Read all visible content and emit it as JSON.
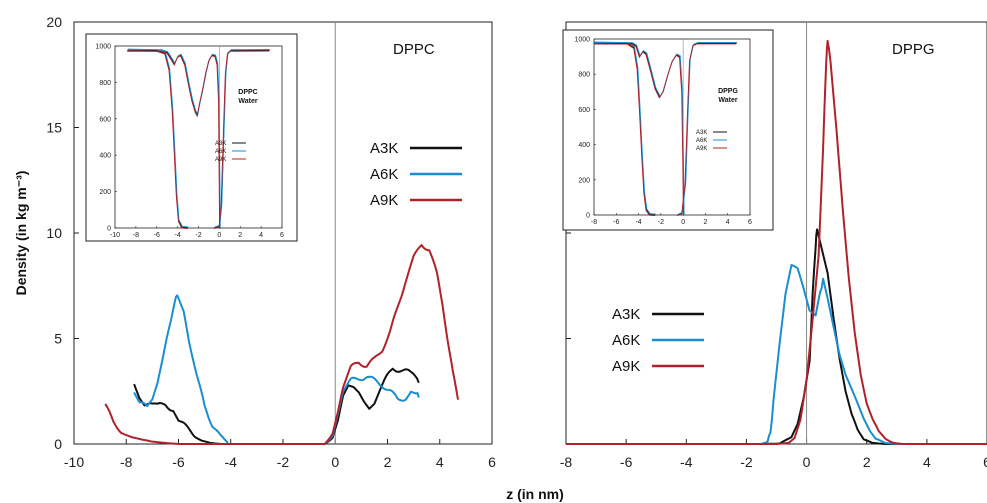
{
  "chart_data": [
    {
      "type": "line",
      "title": "DPPC",
      "xlabel": "z (in nm)",
      "ylabel": "Density (in kg m⁻³)",
      "xlim": [
        -10,
        6
      ],
      "ylim": [
        0,
        20
      ],
      "xticks": [
        -10,
        -8,
        -6,
        -4,
        -2,
        0,
        2,
        4,
        6
      ],
      "yticks": [
        0,
        5,
        10,
        15,
        20
      ],
      "legend_position": "right",
      "series": [
        {
          "name": "A3K",
          "color": "#111111",
          "segments": [
            [
              [
                -7.7,
                2.8
              ],
              [
                -7.5,
                2.2
              ],
              [
                -7.3,
                1.9
              ],
              [
                -7.0,
                1.8
              ],
              [
                -6.8,
                1.8
              ],
              [
                -6.5,
                1.9
              ],
              [
                -6.2,
                1.6
              ],
              [
                -6.0,
                1.2
              ],
              [
                -5.7,
                0.8
              ],
              [
                -5.4,
                0.4
              ],
              [
                -5.1,
                0.15
              ],
              [
                -4.8,
                0.05
              ],
              [
                -4.4,
                0.0
              ],
              [
                -2.0,
                0.0
              ],
              [
                -0.4,
                0.0
              ],
              [
                -0.1,
                0.3
              ],
              [
                0.1,
                1.2
              ],
              [
                0.3,
                2.4
              ],
              [
                0.5,
                2.9
              ],
              [
                0.7,
                2.8
              ],
              [
                0.9,
                2.5
              ],
              [
                1.1,
                2.0
              ],
              [
                1.3,
                1.6
              ],
              [
                1.5,
                1.8
              ],
              [
                1.7,
                2.4
              ],
              [
                1.9,
                3.0
              ],
              [
                2.2,
                3.6
              ],
              [
                2.5,
                3.5
              ],
              [
                2.8,
                3.4
              ],
              [
                3.0,
                3.2
              ],
              [
                3.2,
                2.9
              ]
            ]
          ]
        },
        {
          "name": "A6K",
          "color": "#1a8ed0",
          "segments": [
            [
              [
                -7.7,
                2.4
              ],
              [
                -7.5,
                2.0
              ],
              [
                -7.2,
                1.7
              ],
              [
                -7.0,
                2.0
              ],
              [
                -6.8,
                2.8
              ],
              [
                -6.6,
                4.0
              ],
              [
                -6.3,
                5.8
              ],
              [
                -6.1,
                6.9
              ],
              [
                -6.0,
                7.0
              ],
              [
                -5.8,
                6.4
              ],
              [
                -5.6,
                5.0
              ],
              [
                -5.3,
                3.2
              ],
              [
                -5.0,
                1.8
              ],
              [
                -4.7,
                0.9
              ],
              [
                -4.4,
                0.4
              ],
              [
                -4.1,
                0.05
              ]
            ],
            [
              [
                -0.4,
                0.0
              ],
              [
                -0.1,
                0.4
              ],
              [
                0.1,
                1.5
              ],
              [
                0.3,
                2.6
              ],
              [
                0.6,
                3.0
              ],
              [
                0.9,
                3.1
              ],
              [
                1.2,
                3.2
              ],
              [
                1.5,
                3.0
              ],
              [
                1.8,
                2.8
              ],
              [
                2.1,
                2.5
              ],
              [
                2.4,
                2.1
              ],
              [
                2.7,
                2.2
              ],
              [
                2.9,
                2.6
              ],
              [
                3.1,
                2.5
              ],
              [
                3.2,
                2.2
              ]
            ]
          ]
        },
        {
          "name": "A9K",
          "color": "#b0222b",
          "segments": [
            [
              [
                -8.8,
                1.9
              ],
              [
                -8.5,
                1.0
              ],
              [
                -8.2,
                0.6
              ],
              [
                -7.8,
                0.35
              ],
              [
                -7.4,
                0.2
              ],
              [
                -7.0,
                0.1
              ],
              [
                -6.5,
                0.05
              ],
              [
                -6.0,
                0.0
              ],
              [
                -4.0,
                0.0
              ],
              [
                -0.4,
                0.0
              ],
              [
                -0.1,
                0.5
              ],
              [
                0.1,
                1.6
              ],
              [
                0.3,
                2.8
              ],
              [
                0.6,
                3.6
              ],
              [
                0.9,
                3.9
              ],
              [
                1.2,
                3.7
              ],
              [
                1.5,
                4.0
              ],
              [
                1.8,
                4.5
              ],
              [
                2.1,
                5.3
              ],
              [
                2.4,
                6.5
              ],
              [
                2.7,
                7.8
              ],
              [
                3.0,
                8.8
              ],
              [
                3.3,
                9.5
              ],
              [
                3.6,
                9.2
              ],
              [
                3.9,
                8.0
              ],
              [
                4.1,
                6.5
              ],
              [
                4.3,
                4.8
              ],
              [
                4.5,
                3.4
              ],
              [
                4.7,
                2.1
              ]
            ]
          ]
        }
      ]
    },
    {
      "type": "line",
      "title": "DPPG",
      "xlabel": "z (in nm)",
      "ylabel": "",
      "xlim": [
        -8,
        6
      ],
      "ylim": [
        0,
        20
      ],
      "xticks": [
        -8,
        -6,
        -4,
        -2,
        0,
        2,
        4,
        6
      ],
      "legend_position": "left",
      "series": [
        {
          "name": "A3K",
          "color": "#111111",
          "segments": [
            [
              [
                -8,
                0
              ],
              [
                -1.5,
                0
              ],
              [
                -0.9,
                0.02
              ],
              [
                -0.5,
                0.3
              ],
              [
                -0.3,
                0.9
              ],
              [
                -0.1,
                2.2
              ],
              [
                0.1,
                4.0
              ],
              [
                0.2,
                7.0
              ],
              [
                0.3,
                9.4
              ],
              [
                0.35,
                10.2
              ],
              [
                0.5,
                9.4
              ],
              [
                0.7,
                8.2
              ],
              [
                0.9,
                6.0
              ],
              [
                1.1,
                4.0
              ],
              [
                1.3,
                2.4
              ],
              [
                1.5,
                1.3
              ],
              [
                1.7,
                0.6
              ],
              [
                1.9,
                0.2
              ],
              [
                2.2,
                0.05
              ],
              [
                2.6,
                0.0
              ],
              [
                4.0,
                0.0
              ]
            ]
          ]
        },
        {
          "name": "A6K",
          "color": "#1a8ed0",
          "segments": [
            [
              [
                -8,
                0
              ],
              [
                -1.5,
                0
              ],
              [
                -1.3,
                0.1
              ],
              [
                -1.2,
                0.6
              ],
              [
                -1.1,
                2.0
              ],
              [
                -0.9,
                4.6
              ],
              [
                -0.7,
                7.0
              ],
              [
                -0.5,
                8.4
              ],
              [
                -0.3,
                8.3
              ],
              [
                -0.1,
                7.4
              ],
              [
                0.1,
                6.4
              ],
              [
                0.3,
                6.2
              ],
              [
                0.45,
                7.2
              ],
              [
                0.55,
                7.8
              ],
              [
                0.7,
                7.0
              ],
              [
                0.9,
                5.6
              ],
              [
                1.1,
                4.2
              ],
              [
                1.3,
                3.2
              ],
              [
                1.5,
                2.5
              ],
              [
                1.7,
                1.8
              ],
              [
                1.9,
                1.1
              ],
              [
                2.1,
                0.6
              ],
              [
                2.3,
                0.25
              ],
              [
                2.6,
                0.05
              ],
              [
                3.0,
                0.0
              ],
              [
                4.5,
                0.0
              ]
            ]
          ]
        },
        {
          "name": "A9K",
          "color": "#b0222b",
          "segments": [
            [
              [
                -8,
                0
              ],
              [
                -1.0,
                0
              ],
              [
                -0.6,
                0.05
              ],
              [
                -0.4,
                0.3
              ],
              [
                -0.2,
                1.2
              ],
              [
                0.0,
                3.0
              ],
              [
                0.2,
                5.8
              ],
              [
                0.4,
                8.8
              ],
              [
                0.55,
                14.0
              ],
              [
                0.65,
                18.0
              ],
              [
                0.7,
                19.2
              ],
              [
                0.8,
                18.0
              ],
              [
                1.0,
                14.8
              ],
              [
                1.2,
                11.2
              ],
              [
                1.4,
                8.0
              ],
              [
                1.6,
                5.4
              ],
              [
                1.8,
                3.4
              ],
              [
                2.0,
                2.0
              ],
              [
                2.2,
                1.2
              ],
              [
                2.4,
                0.6
              ],
              [
                2.6,
                0.25
              ],
              [
                2.9,
                0.05
              ],
              [
                3.2,
                0.0
              ],
              [
                6.0,
                0.0
              ]
            ]
          ]
        }
      ]
    }
  ],
  "insets": [
    {
      "labels": [
        "DPPC",
        "Water"
      ],
      "xlim": [
        -10,
        6
      ],
      "ylim": [
        0,
        1000
      ],
      "xticks": [
        -10,
        -8,
        -6,
        -4,
        -2,
        0,
        2,
        4,
        6
      ],
      "yticks": [
        0,
        200,
        400,
        600,
        800,
        1000
      ],
      "legend": [
        {
          "name": "A3K",
          "color": "#111111"
        },
        {
          "name": "A6K",
          "color": "#1a8ed0"
        },
        {
          "name": "A9K",
          "color": "#b0222b"
        }
      ],
      "lipid_curve": [
        [
          -8.8,
          975
        ],
        [
          -5.6,
          975
        ],
        [
          -5.0,
          965
        ],
        [
          -4.6,
          930
        ],
        [
          -4.3,
          900
        ],
        [
          -4.0,
          940
        ],
        [
          -3.7,
          950
        ],
        [
          -3.3,
          900
        ],
        [
          -2.9,
          780
        ],
        [
          -2.6,
          700
        ],
        [
          -2.3,
          640
        ],
        [
          -2.1,
          620
        ],
        [
          -1.9,
          680
        ],
        [
          -1.6,
          760
        ],
        [
          -1.3,
          850
        ],
        [
          -1.0,
          920
        ],
        [
          -0.7,
          950
        ],
        [
          -0.4,
          945
        ],
        [
          -0.2,
          900
        ],
        [
          -0.05,
          700
        ],
        [
          0.0,
          300
        ],
        [
          0.05,
          0
        ]
      ],
      "water_left": [
        [
          -8.8,
          978
        ],
        [
          -6.0,
          975
        ],
        [
          -5.2,
          960
        ],
        [
          -4.8,
          870
        ],
        [
          -4.5,
          650
        ],
        [
          -4.3,
          420
        ],
        [
          -4.1,
          180
        ],
        [
          -3.9,
          40
        ],
        [
          -3.6,
          5
        ],
        [
          -3.0,
          0
        ]
      ],
      "water_right": [
        [
          -0.5,
          0
        ],
        [
          0.0,
          10
        ],
        [
          0.2,
          120
        ],
        [
          0.4,
          500
        ],
        [
          0.6,
          850
        ],
        [
          0.8,
          960
        ],
        [
          1.1,
          975
        ],
        [
          4.8,
          976
        ]
      ]
    },
    {
      "labels": [
        "DPPG",
        "Water"
      ],
      "xlim": [
        -8,
        6
      ],
      "ylim": [
        0,
        1000
      ],
      "xticks": [
        -8,
        -6,
        -4,
        -2,
        0,
        2,
        4,
        6
      ],
      "yticks": [
        0,
        200,
        400,
        600,
        800,
        1000
      ],
      "legend": [
        {
          "name": "A3K",
          "color": "#111111"
        },
        {
          "name": "A6K",
          "color": "#1a8ed0"
        },
        {
          "name": "A9K",
          "color": "#b0222b"
        }
      ],
      "lipid_curve": [
        [
          -8,
          975
        ],
        [
          -4.6,
          975
        ],
        [
          -4.2,
          960
        ],
        [
          -3.9,
          900
        ],
        [
          -3.6,
          930
        ],
        [
          -3.3,
          915
        ],
        [
          -2.9,
          820
        ],
        [
          -2.5,
          720
        ],
        [
          -2.1,
          670
        ],
        [
          -1.8,
          700
        ],
        [
          -1.4,
          790
        ],
        [
          -1.0,
          870
        ],
        [
          -0.6,
          910
        ],
        [
          -0.3,
          900
        ],
        [
          -0.1,
          700
        ],
        [
          0.0,
          300
        ],
        [
          0.05,
          0
        ]
      ],
      "water_left": [
        [
          -8,
          978
        ],
        [
          -5.0,
          975
        ],
        [
          -4.4,
          950
        ],
        [
          -4.1,
          830
        ],
        [
          -3.9,
          600
        ],
        [
          -3.7,
          350
        ],
        [
          -3.5,
          130
        ],
        [
          -3.3,
          30
        ],
        [
          -3.0,
          3
        ],
        [
          -2.5,
          0
        ]
      ],
      "water_right": [
        [
          -0.5,
          0
        ],
        [
          -0.1,
          10
        ],
        [
          0.2,
          180
        ],
        [
          0.4,
          560
        ],
        [
          0.6,
          880
        ],
        [
          0.9,
          965
        ],
        [
          1.3,
          976
        ],
        [
          4.8,
          976
        ]
      ]
    }
  ]
}
